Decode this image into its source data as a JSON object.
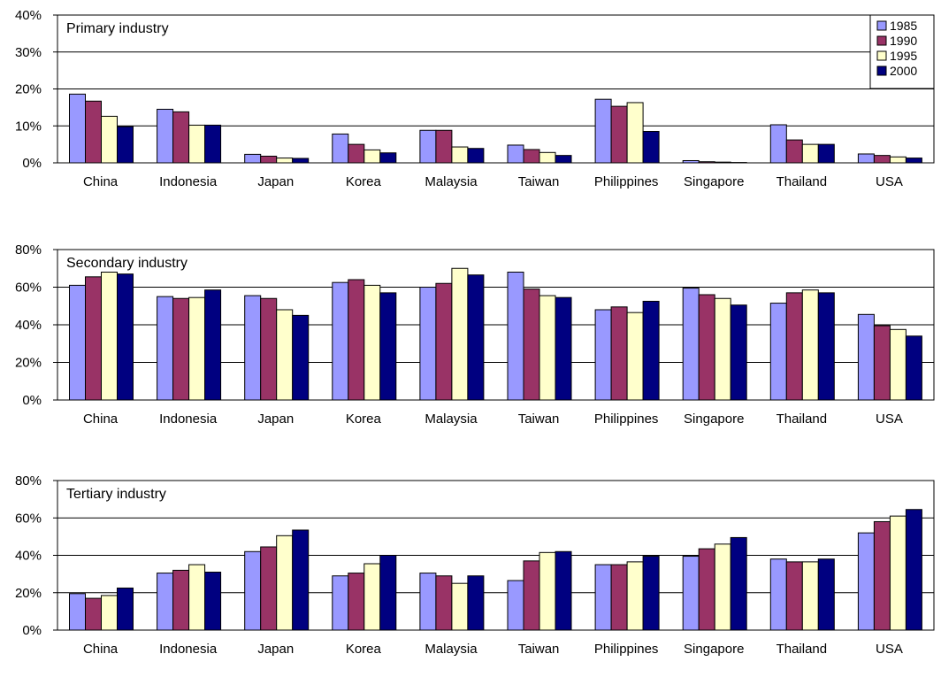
{
  "chart_data": [
    {
      "type": "bar",
      "title": "Primary industry",
      "categories": [
        "China",
        "Indonesia",
        "Japan",
        "Korea",
        "Malaysia",
        "Taiwan",
        "Philippines",
        "Singapore",
        "Thailand",
        "USA"
      ],
      "series": [
        {
          "name": "1985",
          "values": [
            18.6,
            14.5,
            2.3,
            7.8,
            8.8,
            4.8,
            17.2,
            0.6,
            10.3,
            2.4
          ]
        },
        {
          "name": "1990",
          "values": [
            16.7,
            13.8,
            1.8,
            5.0,
            8.8,
            3.6,
            15.3,
            0.3,
            6.2,
            2.0
          ]
        },
        {
          "name": "1995",
          "values": [
            12.6,
            10.2,
            1.3,
            3.5,
            4.3,
            2.8,
            16.3,
            0.2,
            5.0,
            1.6
          ]
        },
        {
          "name": "2000",
          "values": [
            9.8,
            10.2,
            1.2,
            2.7,
            3.9,
            2.0,
            8.5,
            0.1,
            5.0,
            1.3
          ]
        }
      ],
      "yticks": [
        "0%",
        "10%",
        "20%",
        "30%",
        "40%"
      ],
      "ylim": [
        0,
        40
      ],
      "legend": "top-right",
      "grid": true
    },
    {
      "type": "bar",
      "title": "Secondary industry",
      "categories": [
        "China",
        "Indonesia",
        "Japan",
        "Korea",
        "Malaysia",
        "Taiwan",
        "Philippines",
        "Singapore",
        "Thailand",
        "USA"
      ],
      "series": [
        {
          "name": "1985",
          "values": [
            61,
            55,
            55.5,
            62.5,
            60,
            68,
            48,
            59.5,
            51.5,
            45.5
          ]
        },
        {
          "name": "1990",
          "values": [
            65.5,
            54,
            54,
            64,
            62,
            59,
            49.5,
            56,
            57,
            39.5
          ]
        },
        {
          "name": "1995",
          "values": [
            68,
            54.5,
            48,
            61,
            70,
            55.5,
            46.5,
            54,
            58.5,
            37.5
          ]
        },
        {
          "name": "2000",
          "values": [
            67,
            58.5,
            45,
            57,
            66.5,
            54.5,
            52.5,
            50.5,
            57,
            34
          ]
        }
      ],
      "yticks": [
        "0%",
        "20%",
        "40%",
        "60%",
        "80%"
      ],
      "ylim": [
        0,
        80
      ],
      "grid": true
    },
    {
      "type": "bar",
      "title": "Tertiary industry",
      "categories": [
        "China",
        "Indonesia",
        "Japan",
        "Korea",
        "Malaysia",
        "Taiwan",
        "Philippines",
        "Singapore",
        "Thailand",
        "USA"
      ],
      "series": [
        {
          "name": "1985",
          "values": [
            19.5,
            30.5,
            42,
            29,
            30.5,
            26.5,
            35,
            39.5,
            38,
            52
          ]
        },
        {
          "name": "1990",
          "values": [
            17,
            32,
            44.5,
            30.5,
            29,
            37,
            35,
            43.5,
            36.5,
            58
          ]
        },
        {
          "name": "1995",
          "values": [
            18.5,
            35,
            50.5,
            35.5,
            25,
            41.5,
            36.5,
            46,
            36.5,
            61
          ]
        },
        {
          "name": "2000",
          "values": [
            22.5,
            31,
            53.5,
            40,
            29,
            42,
            39.5,
            49.5,
            38,
            64.5
          ]
        }
      ],
      "yticks": [
        "0%",
        "20%",
        "40%",
        "60%",
        "80%"
      ],
      "ylim": [
        0,
        80
      ],
      "grid": true
    }
  ],
  "colors": {
    "1985": "#9999ff",
    "1990": "#993366",
    "1995": "#ffffcc",
    "2000": "#000080",
    "frame": "#000000",
    "background": "#ffffff"
  }
}
